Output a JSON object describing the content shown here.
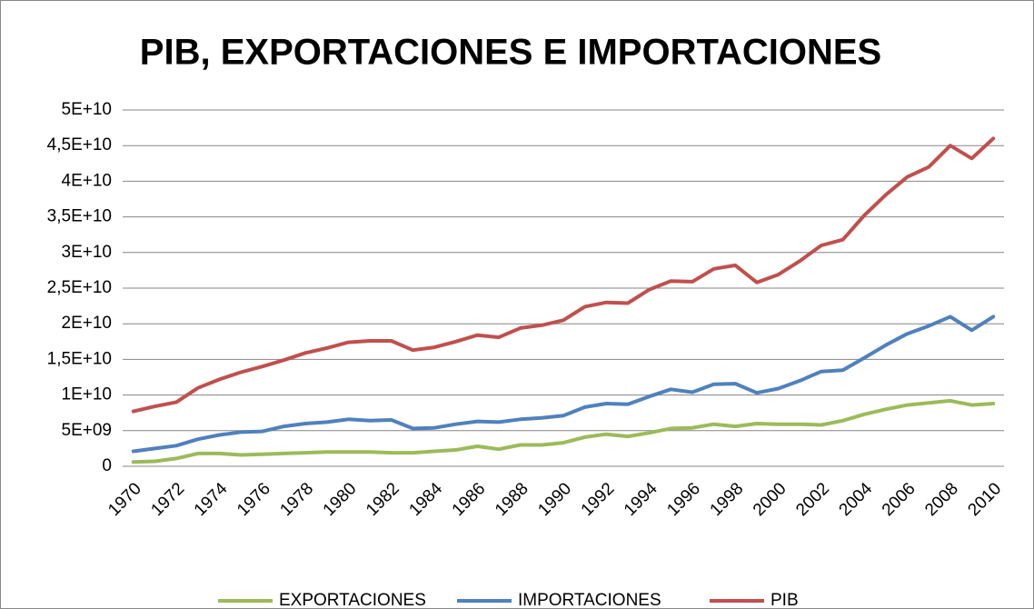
{
  "chart_data": {
    "type": "line",
    "title": "PIB, EXPORTACIONES  E IMPORTACIONES",
    "categories": [
      "1970",
      null,
      "1972",
      null,
      "1974",
      null,
      "1976",
      null,
      "1978",
      null,
      "1980",
      null,
      "1982",
      null,
      "1984",
      null,
      "1986",
      null,
      "1988",
      null,
      "1990",
      null,
      "1992",
      null,
      "1994",
      null,
      "1996",
      null,
      "1998",
      null,
      "2000",
      null,
      "2002",
      null,
      "2004",
      null,
      "2006",
      null,
      "2008",
      null,
      "2010"
    ],
    "series": [
      {
        "name": "EXPORTACIONES",
        "color": "#9bbb59",
        "values": [
          600000000.0,
          700000000.0,
          1100000000.0,
          1800000000.0,
          1800000000.0,
          1600000000.0,
          1700000000.0,
          1800000000.0,
          1900000000.0,
          2000000000.0,
          2000000000.0,
          2000000000.0,
          1900000000.0,
          1900000000.0,
          2100000000.0,
          2300000000.0,
          2800000000.0,
          2400000000.0,
          3000000000.0,
          3000000000.0,
          3300000000.0,
          4100000000.0,
          4500000000.0,
          4200000000.0,
          4700000000.0,
          5300000000.0,
          5400000000.0,
          5900000000.0,
          5600000000.0,
          6000000000.0,
          5900000000.0,
          5900000000.0,
          5800000000.0,
          6400000000.0,
          7300000000.0,
          8000000000.0,
          8600000000.0,
          8900000000.0,
          9200000000.0,
          8600000000.0,
          8800000000.0
        ]
      },
      {
        "name": "IMPORTACIONES",
        "color": "#4f81bd",
        "values": [
          2100000000.0,
          2500000000.0,
          2900000000.0,
          3800000000.0,
          4400000000.0,
          4800000000.0,
          4900000000.0,
          5600000000.0,
          6000000000.0,
          6200000000.0,
          6600000000.0,
          6400000000.0,
          6500000000.0,
          5300000000.0,
          5400000000.0,
          5900000000.0,
          6300000000.0,
          6200000000.0,
          6600000000.0,
          6800000000.0,
          7100000000.0,
          8300000000.0,
          8800000000.0,
          8700000000.0,
          9800000000.0,
          10800000000.0,
          10400000000.0,
          11500000000.0,
          11600000000.0,
          10300000000.0,
          10900000000.0,
          12000000000.0,
          13300000000.0,
          13500000000.0,
          15200000000.0,
          17000000000.0,
          18600000000.0,
          19700000000.0,
          21000000000.0,
          19100000000.0,
          21000000000.0
        ]
      },
      {
        "name": "PIB",
        "color": "#c0504d",
        "values": [
          7700000000.0,
          8400000000.0,
          9000000000.0,
          11000000000.0,
          12200000000.0,
          13200000000.0,
          14000000000.0,
          14900000000.0,
          15900000000.0,
          16600000000.0,
          17400000000.0,
          17600000000.0,
          17600000000.0,
          16300000000.0,
          16700000000.0,
          17500000000.0,
          18400000000.0,
          18100000000.0,
          19400000000.0,
          19800000000.0,
          20500000000.0,
          22400000000.0,
          23000000000.0,
          22900000000.0,
          24800000000.0,
          26000000000.0,
          25900000000.0,
          27700000000.0,
          28200000000.0,
          25800000000.0,
          26900000000.0,
          28800000000.0,
          31000000000.0,
          31800000000.0,
          35200000000.0,
          38100000000.0,
          40600000000.0,
          42000000000.0,
          45000000000.0,
          43200000000.0,
          46000000000.0
        ]
      }
    ],
    "ylim": [
      0,
      50000000000.0
    ],
    "yticks": [
      0,
      {
        "value": 5000000000.0,
        "label": "5E+09"
      },
      {
        "value": 10000000000.0,
        "label": "1E+10"
      },
      {
        "value": 15000000000.0,
        "label": "1,5E+10"
      },
      {
        "value": 20000000000.0,
        "label": "2E+10"
      },
      {
        "value": 25000000000.0,
        "label": "2,5E+10"
      },
      {
        "value": 30000000000.0,
        "label": "3E+10"
      },
      {
        "value": 35000000000.0,
        "label": "3,5E+10"
      },
      {
        "value": 40000000000.0,
        "label": "4E+10"
      },
      {
        "value": 45000000000.0,
        "label": "4,5E+10"
      },
      {
        "value": 50000000000.0,
        "label": "5E+10"
      }
    ],
    "grid": true,
    "legend": "bottom"
  }
}
